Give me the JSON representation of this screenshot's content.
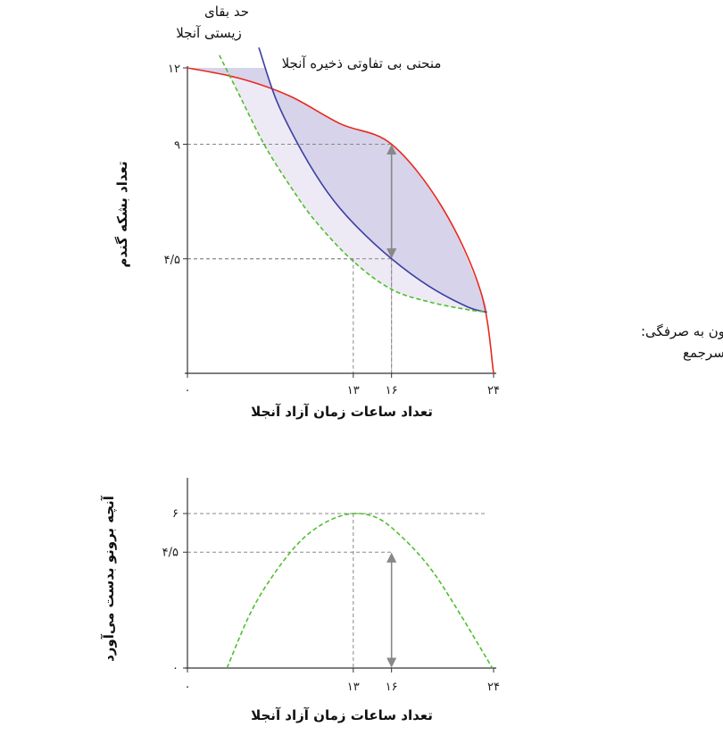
{
  "chart_data": [
    {
      "type": "line",
      "xlabel": "تعداد ساعات زمان آزاد آنجلا",
      "ylabel": "تعداد بشکه گندم",
      "xlim": [
        0,
        24
      ],
      "ylim": [
        0,
        12
      ],
      "x_ticks": [
        {
          "value": 0,
          "label": "۰"
        },
        {
          "value": 13,
          "label": "۱۳"
        },
        {
          "value": 16,
          "label": "۱۶"
        },
        {
          "value": 24,
          "label": "۲۴"
        }
      ],
      "y_ticks": [
        {
          "value": 4.5,
          "label": "۴/۵"
        },
        {
          "value": 9,
          "label": "۹"
        },
        {
          "value": 12,
          "label": "۱۲"
        }
      ],
      "series": [
        {
          "name": "مرز مقرون به صرفگی: آنجلا و برونو بصورت سرجمع",
          "color": "#e8281e",
          "style": "solid",
          "x": [
            0,
            4,
            8,
            12,
            16,
            20,
            23,
            24
          ],
          "y": [
            12,
            11.6,
            10.9,
            9.8,
            9,
            6.5,
            3.2,
            0
          ]
        },
        {
          "name": "منحنی بی تفاوتی ذخیره آنجلا",
          "color": "#3b3fa0",
          "style": "solid",
          "x": [
            5.6,
            7,
            9,
            11,
            13,
            16,
            19,
            22,
            23.5
          ],
          "y": [
            12.8,
            10.7,
            8.7,
            7.1,
            5.9,
            4.5,
            3.4,
            2.6,
            2.4
          ]
        },
        {
          "name": "حد بقای زیستی آنجلا",
          "color": "#4fbf2f",
          "style": "dashed",
          "x": [
            2.5,
            4,
            6,
            8,
            10,
            13,
            16,
            19,
            22,
            23.5
          ],
          "y": [
            12.5,
            11,
            9,
            7.4,
            6,
            4.4,
            3.3,
            2.8,
            2.5,
            2.4
          ]
        }
      ],
      "guides": [
        {
          "x": 13,
          "y": 4.5
        },
        {
          "x": 16,
          "y": 9
        },
        {
          "x": 16,
          "y": 4.5
        }
      ],
      "annotations": [
        {
          "id": "survival",
          "lines": [
            "حد بقای",
            "زیستی آنجلا"
          ]
        },
        {
          "id": "indifference",
          "lines": [
            "منحنی بی تفاوتی ذخیره آنجلا"
          ]
        },
        {
          "id": "frontier",
          "lines": [
            "مرز مقرون به صرفگی:",
            "آنجلا و برونو بصورت سرجمع"
          ]
        }
      ]
    },
    {
      "type": "line",
      "xlabel": "تعداد ساعات زمان آزاد آنجلا",
      "ylabel": "آنچه برونو بدست می‌آورد",
      "xlim": [
        0,
        24
      ],
      "ylim": [
        0,
        6
      ],
      "x_ticks": [
        {
          "value": 0,
          "label": "۰"
        },
        {
          "value": 13,
          "label": "۱۳"
        },
        {
          "value": 16,
          "label": "۱۶"
        },
        {
          "value": 24,
          "label": "۲۴"
        }
      ],
      "y_ticks": [
        {
          "value": 0,
          "label": "۰"
        },
        {
          "value": 4.5,
          "label": "۴/۵"
        },
        {
          "value": 6,
          "label": "۶"
        }
      ],
      "series": [
        {
          "name": "",
          "color": "#4fbf2f",
          "style": "dashed",
          "x": [
            3.1,
            5,
            7,
            9,
            11,
            13,
            15,
            17,
            19,
            21,
            23.9
          ],
          "y": [
            0,
            2.2,
            3.8,
            5.0,
            5.7,
            6.0,
            5.8,
            5.0,
            3.9,
            2.4,
            0
          ]
        }
      ],
      "guides": [
        {
          "x": 13,
          "y": 6
        },
        {
          "x": 16,
          "y": 4.5
        }
      ]
    }
  ]
}
